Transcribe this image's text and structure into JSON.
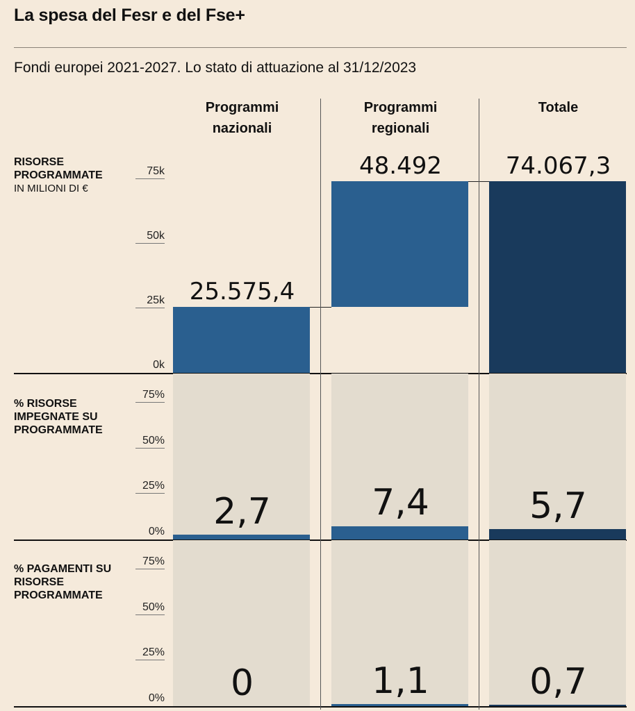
{
  "title": "La spesa del Fesr e del Fse+",
  "subtitle": "Fondi europei 2021-2027. Lo stato di attuazione al 31/12/2023",
  "columns": [
    {
      "label": "Programmi\nnazionali"
    },
    {
      "label": "Programmi\nregionali"
    },
    {
      "label": "Totale"
    }
  ],
  "colors": {
    "background": "#f5eadb",
    "panel": "#e3dccf",
    "bar": "#2a5f8f",
    "bar_total": "#193a5c"
  },
  "chart_data": [
    {
      "type": "bar",
      "title": "RISORSE PROGRAMMATE",
      "unit_label": "IN MILIONI DI €",
      "categories": [
        "Programmi nazionali",
        "Programmi regionali",
        "Totale"
      ],
      "values": [
        25575.4,
        48492,
        74067.3
      ],
      "value_labels": [
        "25.575,4",
        "48.492",
        "74.067,3"
      ],
      "stacked_waterfall": true,
      "ylim": [
        0,
        75000
      ],
      "ticks": [
        "0k",
        "25k",
        "50k",
        "75k"
      ]
    },
    {
      "type": "bar",
      "title": "% RISORSE IMPEGNATE SU PROGRAMMATE",
      "categories": [
        "Programmi nazionali",
        "Programmi regionali",
        "Totale"
      ],
      "values": [
        2.7,
        7.4,
        5.7
      ],
      "value_labels": [
        "2,7",
        "7,4",
        "5,7"
      ],
      "ylim": [
        0,
        75
      ],
      "ticks": [
        "0%",
        "25%",
        "50%",
        "75%"
      ]
    },
    {
      "type": "bar",
      "title": "% PAGAMENTI SU RISORSE PROGRAMMATE",
      "categories": [
        "Programmi nazionali",
        "Programmi regionali",
        "Totale"
      ],
      "values": [
        0,
        1.1,
        0.7
      ],
      "value_labels": [
        "0",
        "1,1",
        "0,7"
      ],
      "ylim": [
        0,
        75
      ],
      "ticks": [
        "0%",
        "25%",
        "50%",
        "75%"
      ]
    }
  ]
}
